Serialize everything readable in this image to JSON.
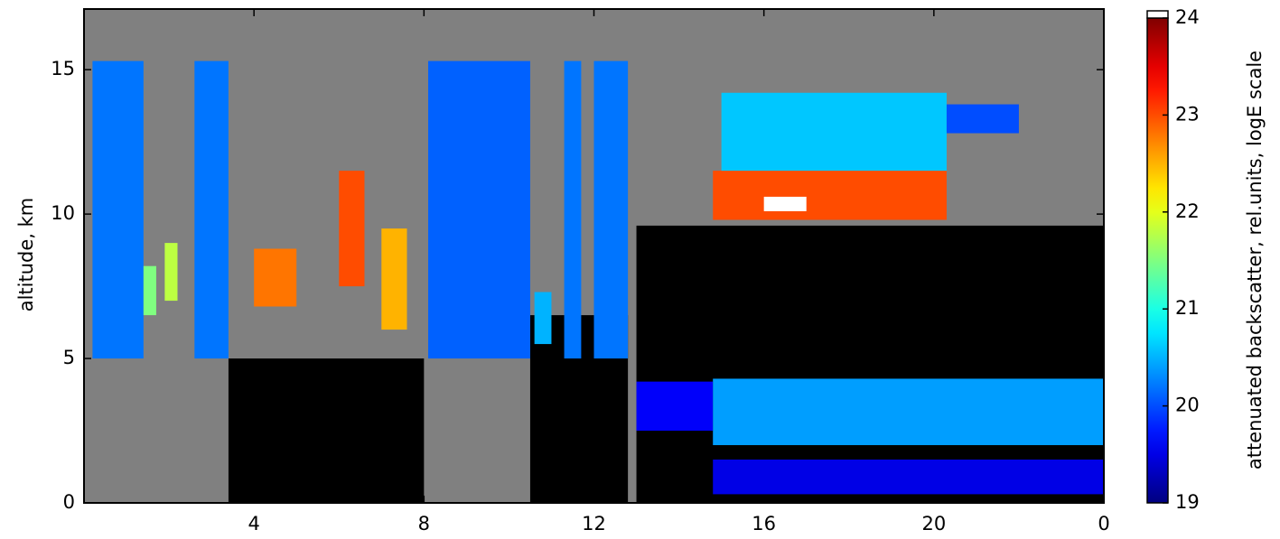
{
  "chart_data": {
    "type": "heatmap",
    "y_label": "altitude, km",
    "colorbar_label": "attenuated backscatter, rel.units, logE scale",
    "xlim": [
      0,
      24
    ],
    "xticks": [
      4,
      8,
      12,
      16,
      20,
      {
        "value": 24,
        "label": "0"
      }
    ],
    "ylim": [
      0,
      17.1
    ],
    "yticks": [
      0,
      5,
      10,
      15
    ],
    "clim": [
      19,
      24
    ],
    "cticks": [
      19,
      20,
      21,
      22,
      23,
      24
    ],
    "colormap": "jet",
    "background": "#808080",
    "regions": [
      {
        "x": [
          3.4,
          8.0
        ],
        "y": [
          0,
          5
        ],
        "value": 18.8
      },
      {
        "x": [
          10.5,
          12.8
        ],
        "y": [
          0,
          6.5
        ],
        "value": 18.8
      },
      {
        "x": [
          13.0,
          24.0
        ],
        "y": [
          0,
          9.6
        ],
        "value": 18.8
      },
      {
        "x": [
          0.2,
          1.4
        ],
        "y": [
          5,
          15.3
        ],
        "value": 20.2
      },
      {
        "x": [
          2.6,
          3.4
        ],
        "y": [
          5,
          15.3
        ],
        "value": 20.2
      },
      {
        "x": [
          8.1,
          10.5
        ],
        "y": [
          5,
          15.3
        ],
        "value": 20.1
      },
      {
        "x": [
          11.3,
          11.7
        ],
        "y": [
          5,
          15.3
        ],
        "value": 20.2
      },
      {
        "x": [
          12.0,
          12.8
        ],
        "y": [
          5,
          15.3
        ],
        "value": 20.2
      },
      {
        "x": [
          1.4,
          1.7
        ],
        "y": [
          6.5,
          8.2
        ],
        "value": 21.5
      },
      {
        "x": [
          1.9,
          2.2
        ],
        "y": [
          7.0,
          9.0
        ],
        "value": 21.8
      },
      {
        "x": [
          4.0,
          5.0
        ],
        "y": [
          6.8,
          8.8
        ],
        "value": 22.8
      },
      {
        "x": [
          6.0,
          6.6
        ],
        "y": [
          7.5,
          11.5
        ],
        "value": 23.0
      },
      {
        "x": [
          7.0,
          7.6
        ],
        "y": [
          6.0,
          9.5
        ],
        "value": 22.5
      },
      {
        "x": [
          10.6,
          11.0
        ],
        "y": [
          5.5,
          7.3
        ],
        "value": 20.5
      },
      {
        "x": [
          15.0,
          20.3
        ],
        "y": [
          11.2,
          14.2
        ],
        "value": 20.6
      },
      {
        "x": [
          14.8,
          20.3
        ],
        "y": [
          9.8,
          11.5
        ],
        "value": 23.0
      },
      {
        "x": [
          16.0,
          17.0
        ],
        "y": [
          10.1,
          10.6
        ],
        "value": 24.5
      },
      {
        "x": [
          20.3,
          22.0
        ],
        "y": [
          12.8,
          13.8
        ],
        "value": 20.0
      },
      {
        "x": [
          13.0,
          14.8
        ],
        "y": [
          2.5,
          4.2
        ],
        "value": 19.6
      },
      {
        "x": [
          14.8,
          24.0
        ],
        "y": [
          2.0,
          4.3
        ],
        "value": 20.4
      },
      {
        "x": [
          14.8,
          24.0
        ],
        "y": [
          0.3,
          1.5
        ],
        "value": 19.5
      }
    ]
  }
}
